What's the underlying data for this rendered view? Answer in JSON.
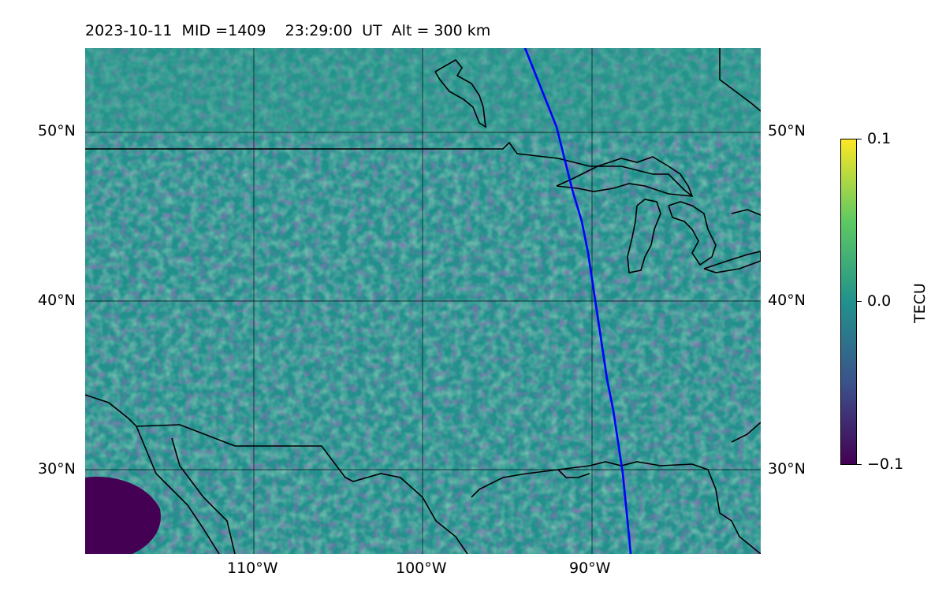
{
  "title": {
    "date": "2023-10-11",
    "mid_label": "MID =1409",
    "time": "23:29:00",
    "time_unit": "UT",
    "alt_label": "Alt = 300 km"
  },
  "map": {
    "lon_ticks": [
      "110°W",
      "100°W",
      "90°W"
    ],
    "lat_ticks": [
      "50°N",
      "40°N",
      "30°N"
    ],
    "lon_range": [
      -120,
      -80
    ],
    "lat_range": [
      25,
      55
    ],
    "track_color": "#0000ff",
    "coast_color": "#000000"
  },
  "colorbar": {
    "label": "TECU",
    "ticks": [
      "0.1",
      "0.0",
      "−0.1"
    ],
    "vmin": -0.1,
    "vmax": 0.1,
    "colormap": "viridis"
  }
}
